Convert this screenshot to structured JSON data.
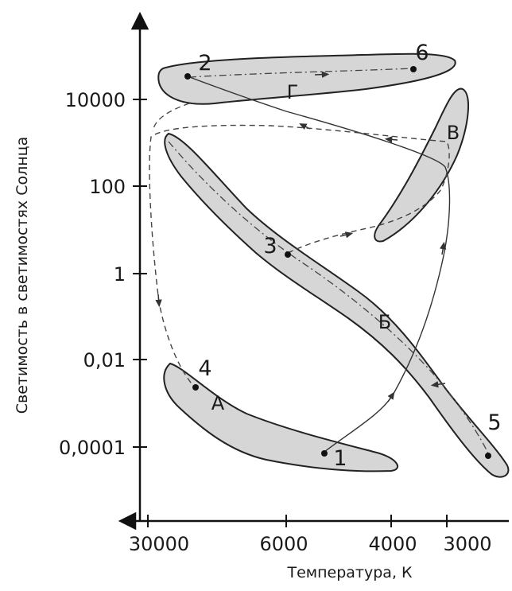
{
  "diagram": {
    "y_axis_label": "Светимость в светимостях Солнца",
    "x_axis_label": "Температура, К",
    "y_ticks": [
      "10000",
      "100",
      "1",
      "0,01",
      "0,0001"
    ],
    "x_ticks": [
      "30000",
      "6000",
      "4000",
      "3000"
    ],
    "regions": {
      "A": "А",
      "B": "Б",
      "V": "В",
      "G": "Г"
    },
    "points": [
      "1",
      "2",
      "3",
      "4",
      "5",
      "6"
    ],
    "colors": {
      "region_fill": "#d6d6d6",
      "stroke": "#222222"
    }
  }
}
